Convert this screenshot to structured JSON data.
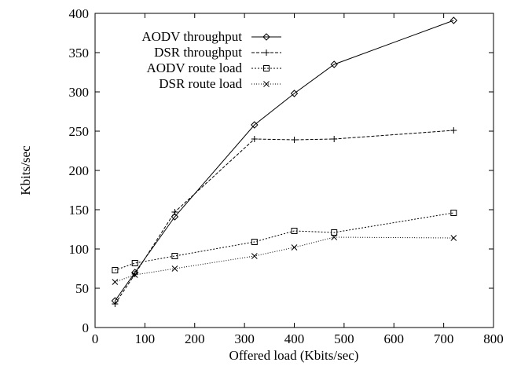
{
  "chart_data": {
    "type": "line",
    "title": "",
    "xlabel": "Offered load (Kbits/sec)",
    "ylabel": "Kbits/sec",
    "xlim": [
      0,
      800
    ],
    "ylim": [
      0,
      400
    ],
    "xticks": [
      0,
      100,
      200,
      300,
      400,
      500,
      600,
      700,
      800
    ],
    "yticks": [
      0,
      50,
      100,
      150,
      200,
      250,
      300,
      350,
      400
    ],
    "grid": false,
    "legend_position": "top-left",
    "series": [
      {
        "name": "AODV throughput",
        "marker": "diamond",
        "line_style": "solid",
        "x": [
          40,
          80,
          160,
          320,
          400,
          480,
          720
        ],
        "y": [
          34,
          70,
          141,
          258,
          298,
          335,
          391
        ]
      },
      {
        "name": "DSR throughput",
        "marker": "plus",
        "line_style": "dashed",
        "x": [
          40,
          80,
          160,
          320,
          400,
          480,
          720
        ],
        "y": [
          30,
          68,
          147,
          240,
          239,
          240,
          251
        ]
      },
      {
        "name": "AODV route load",
        "marker": "square",
        "line_style": "dotted",
        "x": [
          40,
          80,
          160,
          320,
          400,
          480,
          720
        ],
        "y": [
          73,
          82,
          91,
          109,
          123,
          121,
          146
        ]
      },
      {
        "name": "DSR route load",
        "marker": "x",
        "line_style": "fine-dotted",
        "x": [
          40,
          80,
          160,
          320,
          400,
          480,
          720
        ],
        "y": [
          58,
          67,
          75,
          91,
          102,
          115,
          114
        ]
      }
    ]
  }
}
